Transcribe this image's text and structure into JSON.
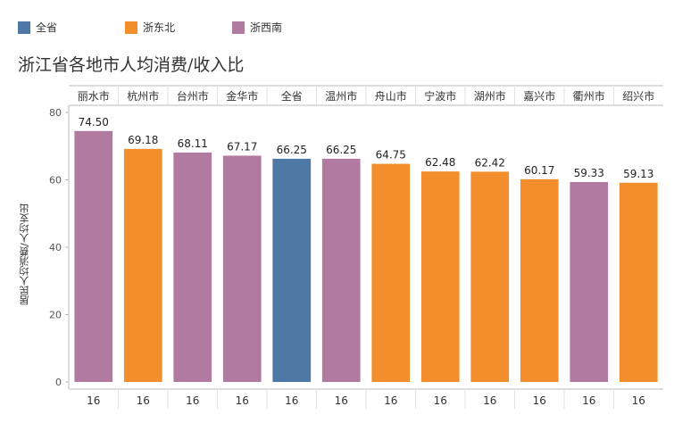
{
  "legend": [
    {
      "label": "全省",
      "color": "#4e79a7"
    },
    {
      "label": "浙东北",
      "color": "#f28e2b"
    },
    {
      "label": "浙西南",
      "color": "#b07aa1"
    }
  ],
  "chart_data": {
    "type": "bar",
    "title": "浙江省各地市人均消费/收入比",
    "ylabel": "居民人均消费/人均支出",
    "xlabel": "",
    "ylim": [
      0,
      80
    ],
    "yticks": [
      0,
      20,
      40,
      60,
      80
    ],
    "grid": false,
    "legend_position": "top-left",
    "categories": [
      "丽水市",
      "杭州市",
      "台州市",
      "金华市",
      "全省",
      "温州市",
      "舟山市",
      "宁波市",
      "湖州市",
      "嘉兴市",
      "衢州市",
      "绍兴市"
    ],
    "values": [
      74.5,
      69.18,
      68.11,
      67.17,
      66.25,
      66.25,
      64.75,
      62.48,
      62.42,
      60.17,
      59.33,
      59.13
    ],
    "value_labels": [
      "74.50",
      "69.18",
      "68.11",
      "67.17",
      "66.25",
      "66.25",
      "64.75",
      "62.48",
      "62.42",
      "60.17",
      "59.33",
      "59.13"
    ],
    "groups": [
      "浙西南",
      "浙东北",
      "浙西南",
      "浙西南",
      "全省",
      "浙西南",
      "浙东北",
      "浙东北",
      "浙东北",
      "浙东北",
      "浙西南",
      "浙东北"
    ],
    "footer": [
      "16",
      "16",
      "16",
      "16",
      "16",
      "16",
      "16",
      "16",
      "16",
      "16",
      "16",
      "16"
    ]
  }
}
